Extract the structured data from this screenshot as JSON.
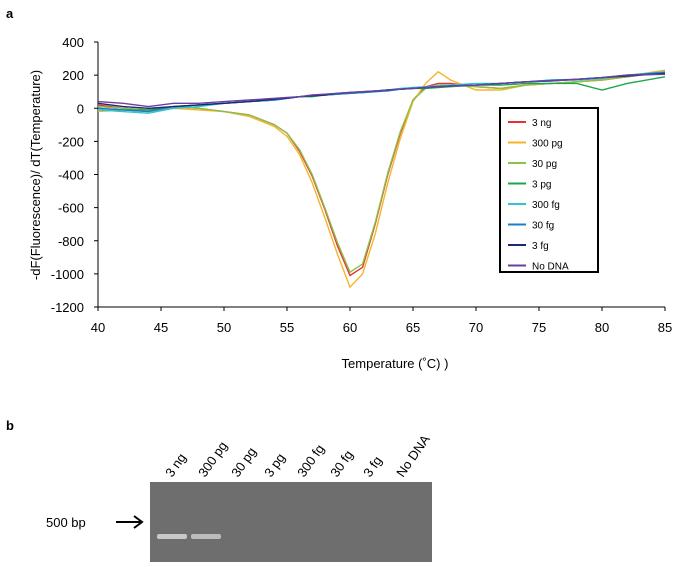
{
  "panel_labels": [
    "a",
    "b"
  ],
  "chart_data": {
    "type": "line",
    "ylabel": "-dF(Fluorescence)/ dT(Temperature)",
    "xlabel": "Temperature (˚C) )",
    "x": [
      40,
      42,
      44,
      46,
      48,
      50,
      52,
      54,
      55,
      56,
      57,
      58,
      59,
      60,
      61,
      62,
      63,
      64,
      65,
      66,
      67,
      68,
      70,
      72,
      74,
      76,
      78,
      80,
      82,
      85
    ],
    "xlim": [
      40,
      85
    ],
    "xticks": [
      40,
      45,
      50,
      55,
      60,
      65,
      70,
      75,
      80,
      85
    ],
    "ylim": [
      -1200,
      400
    ],
    "yticks": [
      400,
      200,
      0,
      -200,
      -400,
      -600,
      -800,
      -1000,
      -1200
    ],
    "grid": false,
    "legend": "right",
    "series": [
      {
        "name": "3 ng",
        "color": "#e8312f",
        "values": [
          20,
          0,
          -10,
          10,
          0,
          -20,
          -40,
          -100,
          -150,
          -260,
          -410,
          -610,
          -830,
          -1010,
          -960,
          -700,
          -400,
          -150,
          50,
          130,
          150,
          150,
          130,
          120,
          140,
          150,
          160,
          170,
          190,
          220
        ]
      },
      {
        "name": "300 pg",
        "color": "#f5b52a",
        "values": [
          -20,
          -10,
          -20,
          0,
          -10,
          -20,
          -50,
          -110,
          -170,
          -280,
          -450,
          -660,
          -880,
          -1080,
          -1000,
          -760,
          -450,
          -180,
          40,
          150,
          220,
          170,
          110,
          110,
          140,
          150,
          160,
          175,
          195,
          230
        ]
      },
      {
        "name": "30 pg",
        "color": "#8cc04a",
        "values": [
          10,
          0,
          -10,
          10,
          0,
          -20,
          -40,
          -100,
          -150,
          -250,
          -400,
          -600,
          -810,
          -990,
          -940,
          -690,
          -390,
          -140,
          50,
          120,
          140,
          140,
          130,
          120,
          140,
          150,
          160,
          170,
          190,
          220
        ]
      },
      {
        "name": "3 pg",
        "color": "#1fa64a",
        "values": [
          0,
          -10,
          -10,
          10,
          20,
          30,
          40,
          50,
          60,
          70,
          70,
          80,
          85,
          90,
          95,
          100,
          110,
          115,
          120,
          120,
          125,
          130,
          140,
          140,
          150,
          150,
          150,
          110,
          150,
          190
        ]
      },
      {
        "name": "300 fg",
        "color": "#2ec4d8",
        "values": [
          -10,
          -20,
          -30,
          0,
          10,
          30,
          40,
          50,
          60,
          70,
          75,
          80,
          85,
          90,
          95,
          100,
          110,
          120,
          125,
          130,
          135,
          140,
          150,
          150,
          160,
          170,
          170,
          180,
          200,
          220
        ]
      },
      {
        "name": "30 fg",
        "color": "#1b7cc7",
        "values": [
          0,
          -10,
          -20,
          10,
          20,
          30,
          40,
          50,
          60,
          70,
          75,
          80,
          85,
          90,
          95,
          100,
          105,
          115,
          120,
          125,
          130,
          135,
          140,
          150,
          160,
          170,
          175,
          185,
          200,
          215
        ]
      },
      {
        "name": "3 fg",
        "color": "#1a2a6c",
        "values": [
          30,
          10,
          0,
          10,
          20,
          30,
          40,
          55,
          60,
          70,
          75,
          80,
          90,
          95,
          100,
          105,
          110,
          115,
          120,
          125,
          130,
          135,
          140,
          150,
          160,
          165,
          175,
          185,
          195,
          210
        ]
      },
      {
        "name": "No DNA",
        "color": "#6a3fa0",
        "values": [
          40,
          30,
          10,
          30,
          30,
          40,
          50,
          60,
          65,
          70,
          80,
          85,
          90,
          95,
          100,
          105,
          110,
          115,
          120,
          125,
          130,
          135,
          140,
          150,
          160,
          165,
          175,
          185,
          200,
          205
        ]
      }
    ]
  },
  "gel": {
    "lanes": [
      "3 ng",
      "300 pg",
      "30 pg",
      "3 pg",
      "300 fg",
      "30 fg",
      "3 fg",
      "No DNA"
    ],
    "marker": "500 bp"
  }
}
